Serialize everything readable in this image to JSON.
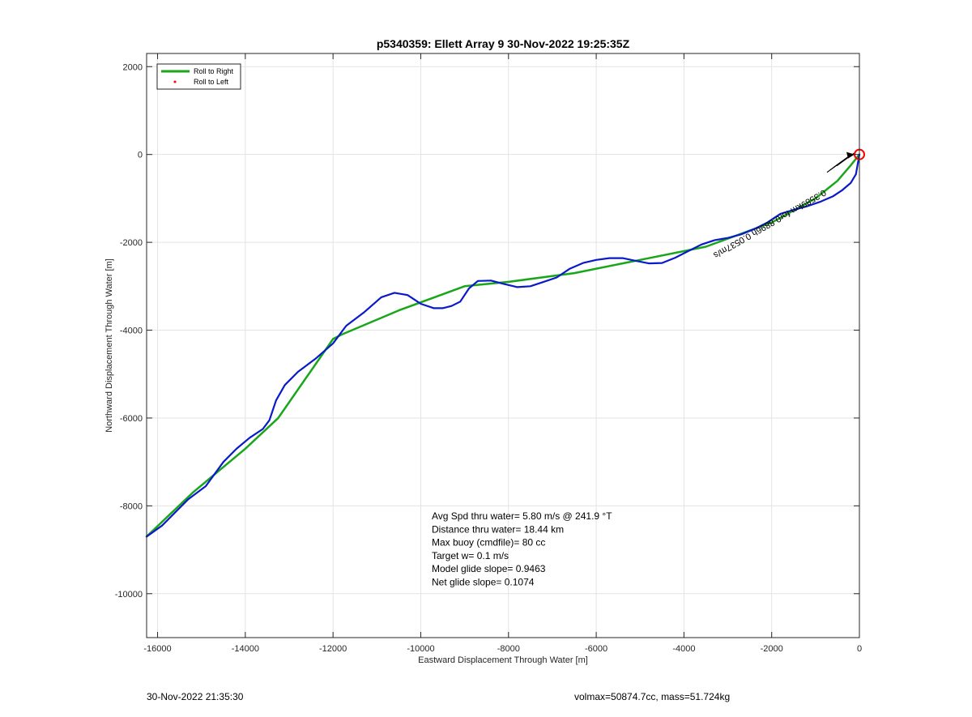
{
  "chart_data": {
    "type": "line",
    "title": "p5340359: Ellett Array 9 30-Nov-2022 19:25:35Z",
    "xlabel": "Eastward Displacement Through Water [m]",
    "ylabel": "Northward Displacement Through Water [m]",
    "xlim": [
      -16250,
      0
    ],
    "ylim": [
      -11000,
      2300
    ],
    "xticks": [
      -16000,
      -14000,
      -12000,
      -10000,
      -8000,
      -6000,
      -4000,
      -2000,
      0
    ],
    "yticks": [
      2000,
      0,
      -2000,
      -4000,
      -6000,
      -8000,
      -10000
    ],
    "grid": true,
    "legend_position": "top-left",
    "legend": [
      "Roll to Right",
      "Roll to Left"
    ],
    "series": [
      {
        "name": "Roll to Right",
        "color": "#1aa61a",
        "x": [
          -16250,
          -15200,
          -14000,
          -13250,
          -12000,
          -11800,
          -10500,
          -9000,
          -8000,
          -6500,
          -5000,
          -3500,
          -2000,
          -1000,
          -500,
          -200,
          0
        ],
        "y": [
          -8700,
          -7700,
          -6700,
          -6000,
          -4200,
          -4100,
          -3550,
          -3000,
          -2900,
          -2700,
          -2400,
          -2100,
          -1550,
          -1000,
          -600,
          -250,
          0
        ]
      },
      {
        "name": "Roll to Left",
        "color": "#ff0000",
        "x": [],
        "y": []
      },
      {
        "name": "",
        "color": "#0a1ac8",
        "x": [
          -16250,
          -15900,
          -15300,
          -14900,
          -14500,
          -14200,
          -13900,
          -13600,
          -13450,
          -13300,
          -13100,
          -12800,
          -12400,
          -12000,
          -11700,
          -11300,
          -10900,
          -10600,
          -10300,
          -10000,
          -9700,
          -9500,
          -9300,
          -9100,
          -8900,
          -8700,
          -8400,
          -8100,
          -7800,
          -7500,
          -7200,
          -6900,
          -6600,
          -6300,
          -6000,
          -5700,
          -5400,
          -5100,
          -4800,
          -4500,
          -4200,
          -3900,
          -3600,
          -3300,
          -3000,
          -2700,
          -2400,
          -2100,
          -1800,
          -1500,
          -1200,
          -900,
          -600,
          -400,
          -200,
          -80,
          0
        ],
        "y": [
          -8700,
          -8450,
          -7850,
          -7550,
          -7000,
          -6700,
          -6450,
          -6250,
          -6050,
          -5600,
          -5250,
          -4950,
          -4650,
          -4300,
          -3900,
          -3600,
          -3250,
          -3150,
          -3200,
          -3400,
          -3500,
          -3500,
          -3450,
          -3350,
          -3050,
          -2880,
          -2870,
          -2950,
          -3020,
          -3000,
          -2900,
          -2800,
          -2600,
          -2470,
          -2400,
          -2360,
          -2360,
          -2420,
          -2480,
          -2470,
          -2350,
          -2200,
          -2050,
          -1950,
          -1900,
          -1820,
          -1700,
          -1550,
          -1350,
          -1260,
          -1180,
          -1080,
          -950,
          -820,
          -650,
          -450,
          0
        ]
      }
    ],
    "markers": [
      {
        "name": "end-point-circle",
        "x": 0,
        "y": 0,
        "color": "#ff0000"
      }
    ],
    "annotations": [
      "Avg Spd thru water=  5.80 m/s @ 241.9 °T",
      "Distance thru water= 18.44 km",
      "Max buoy (cmdfile)= 80 cc",
      "Target w= 0.1 m/s",
      "Model glide slope= 0.9463",
      "Net glide slope= 0.1074"
    ],
    "rotated_label": "0.3589km  for0.8896h  0.0537m/s",
    "footer_left": "30-Nov-2022 21:35:30",
    "footer_right": "volmax=50874.7cc, mass=51.724kg"
  }
}
